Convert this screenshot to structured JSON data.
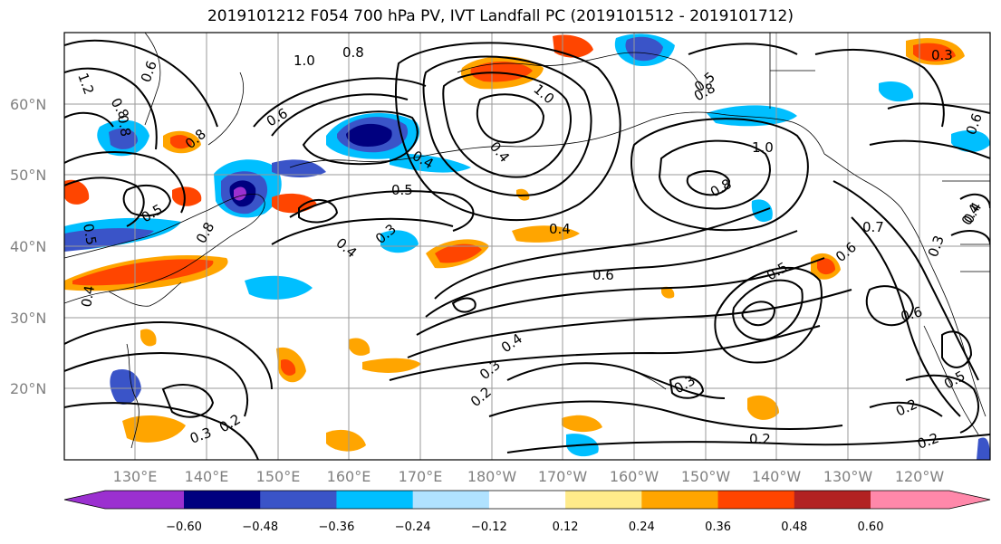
{
  "title": "2019101212 F054 700 hPa PV, IVT Landfall PC (2019101512 - 2019101712)",
  "lat_labels": [
    "60°N",
    "50°N",
    "40°N",
    "30°N",
    "20°N"
  ],
  "lon_labels": [
    "130°E",
    "140°E",
    "150°E",
    "160°E",
    "170°E",
    "180°W",
    "170°W",
    "160°W",
    "150°W",
    "140°W",
    "130°W",
    "120°W"
  ],
  "colorbar": {
    "ticks": [
      "−0.60",
      "−0.48",
      "−0.36",
      "−0.24",
      "−0.12",
      "0.12",
      "0.24",
      "0.36",
      "0.48",
      "0.60"
    ],
    "colors": [
      "#9b30d0",
      "#00007f",
      "#3a54c8",
      "#00bfff",
      "#b0e2ff",
      "#ffffff",
      "#ffeb8a",
      "#ffa500",
      "#ff4500",
      "#b22222",
      "#ff88aa"
    ]
  },
  "contour_labels": [
    "1.2",
    "0.6",
    "0.8",
    "1.0",
    "0.8",
    "0.8",
    "0.8",
    "0.8",
    "0.6",
    "0.4",
    "0.4",
    "1.0",
    "0.5",
    "0.3",
    "0.4",
    "0.5",
    "0.4",
    "0.5",
    "0.6",
    "1.0",
    "0.8",
    "0.4",
    "0.6",
    "0.5",
    "0.6",
    "0.6",
    "0.7",
    "0.3",
    "0.4",
    "0.8",
    "0.4",
    "0.3",
    "0.4",
    "0.2",
    "0.3",
    "0.2",
    "0.3",
    "0.2",
    "0.5",
    "0.2",
    "0.5",
    "0.2",
    "0.3"
  ]
}
